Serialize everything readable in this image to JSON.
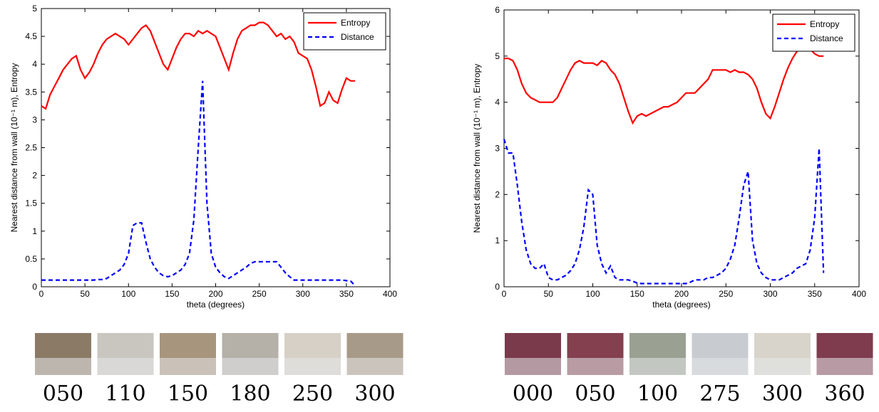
{
  "chart_data": [
    {
      "type": "line",
      "xlabel": "theta (degrees)",
      "ylabel": "Nearest distance from wall (10⁻¹ m), Entropy",
      "xlim": [
        0,
        400
      ],
      "xticks": [
        0,
        50,
        100,
        150,
        200,
        250,
        300,
        350,
        400
      ],
      "ylim": [
        0,
        5
      ],
      "yticks": [
        0,
        0.5,
        1,
        1.5,
        2,
        2.5,
        3,
        3.5,
        4,
        4.5,
        5
      ],
      "grid": false,
      "legend": "upper right",
      "x": [
        0,
        5,
        10,
        15,
        20,
        25,
        30,
        35,
        40,
        45,
        50,
        55,
        60,
        65,
        70,
        75,
        80,
        85,
        90,
        95,
        100,
        105,
        110,
        115,
        120,
        125,
        130,
        135,
        140,
        145,
        150,
        155,
        160,
        165,
        170,
        175,
        180,
        185,
        190,
        195,
        200,
        205,
        210,
        215,
        220,
        225,
        230,
        235,
        240,
        245,
        250,
        255,
        260,
        265,
        270,
        275,
        280,
        285,
        290,
        295,
        300,
        305,
        310,
        315,
        320,
        325,
        330,
        335,
        340,
        345,
        350,
        355,
        360
      ],
      "series": [
        {
          "name": "Entropy",
          "color": "#ff0000",
          "dash": "solid",
          "values": [
            3.25,
            3.2,
            3.45,
            3.6,
            3.75,
            3.9,
            4.0,
            4.1,
            4.15,
            3.9,
            3.75,
            3.85,
            4.0,
            4.2,
            4.35,
            4.45,
            4.5,
            4.55,
            4.5,
            4.45,
            4.35,
            4.45,
            4.55,
            4.65,
            4.7,
            4.6,
            4.4,
            4.2,
            4.0,
            3.9,
            4.1,
            4.3,
            4.45,
            4.55,
            4.55,
            4.5,
            4.6,
            4.55,
            4.6,
            4.55,
            4.5,
            4.3,
            4.1,
            3.9,
            4.2,
            4.45,
            4.6,
            4.65,
            4.7,
            4.7,
            4.75,
            4.75,
            4.7,
            4.6,
            4.5,
            4.55,
            4.45,
            4.5,
            4.4,
            4.2,
            4.15,
            4.1,
            3.9,
            3.6,
            3.25,
            3.3,
            3.5,
            3.35,
            3.3,
            3.55,
            3.75,
            3.7,
            3.7
          ]
        },
        {
          "name": "Distance",
          "color": "#0000ff",
          "dash": "dashed",
          "values": [
            0.12,
            0.12,
            0.12,
            0.12,
            0.12,
            0.12,
            0.12,
            0.12,
            0.12,
            0.12,
            0.12,
            0.12,
            0.12,
            0.13,
            0.13,
            0.15,
            0.2,
            0.25,
            0.3,
            0.4,
            0.6,
            1.1,
            1.15,
            1.15,
            0.8,
            0.5,
            0.35,
            0.25,
            0.2,
            0.18,
            0.2,
            0.25,
            0.3,
            0.4,
            0.6,
            1.2,
            2.5,
            3.7,
            1.5,
            0.6,
            0.35,
            0.25,
            0.18,
            0.15,
            0.2,
            0.25,
            0.3,
            0.35,
            0.42,
            0.45,
            0.45,
            0.45,
            0.45,
            0.45,
            0.45,
            0.35,
            0.25,
            0.18,
            0.12,
            0.12,
            0.12,
            0.12,
            0.12,
            0.12,
            0.12,
            0.12,
            0.12,
            0.12,
            0.12,
            0.12,
            0.11,
            0.1,
            0.02
          ]
        }
      ]
    },
    {
      "type": "line",
      "xlabel": "theta (degrees)",
      "ylabel": "Nearest distance from wall (10⁻¹ m), Entropy",
      "xlim": [
        0,
        400
      ],
      "xticks": [
        0,
        50,
        100,
        150,
        200,
        250,
        300,
        350,
        400
      ],
      "ylim": [
        0,
        6
      ],
      "yticks": [
        0,
        1,
        2,
        3,
        4,
        5,
        6
      ],
      "grid": false,
      "legend": "upper right",
      "x": [
        0,
        5,
        10,
        15,
        20,
        25,
        30,
        35,
        40,
        45,
        50,
        55,
        60,
        65,
        70,
        75,
        80,
        85,
        90,
        95,
        100,
        105,
        110,
        115,
        120,
        125,
        130,
        135,
        140,
        145,
        150,
        155,
        160,
        165,
        170,
        175,
        180,
        185,
        190,
        195,
        200,
        205,
        210,
        215,
        220,
        225,
        230,
        235,
        240,
        245,
        250,
        255,
        260,
        265,
        270,
        275,
        280,
        285,
        290,
        295,
        300,
        305,
        310,
        315,
        320,
        325,
        330,
        335,
        340,
        345,
        350,
        355,
        360
      ],
      "series": [
        {
          "name": "Entropy",
          "color": "#ff0000",
          "dash": "solid",
          "values": [
            4.95,
            4.95,
            4.9,
            4.7,
            4.4,
            4.2,
            4.1,
            4.05,
            4.0,
            4.0,
            4.0,
            4.0,
            4.1,
            4.3,
            4.5,
            4.7,
            4.85,
            4.9,
            4.85,
            4.85,
            4.85,
            4.8,
            4.9,
            4.85,
            4.7,
            4.6,
            4.4,
            4.1,
            3.8,
            3.55,
            3.7,
            3.75,
            3.7,
            3.75,
            3.8,
            3.85,
            3.9,
            3.9,
            3.95,
            4.0,
            4.1,
            4.2,
            4.2,
            4.2,
            4.3,
            4.4,
            4.5,
            4.7,
            4.7,
            4.7,
            4.7,
            4.65,
            4.7,
            4.65,
            4.65,
            4.6,
            4.5,
            4.3,
            4.0,
            3.75,
            3.65,
            3.9,
            4.2,
            4.5,
            4.75,
            4.95,
            5.1,
            5.2,
            5.2,
            5.15,
            5.05,
            5.0,
            5.0
          ]
        },
        {
          "name": "Distance",
          "color": "#0000ff",
          "dash": "dashed",
          "values": [
            3.2,
            2.9,
            2.9,
            2.2,
            1.4,
            0.8,
            0.5,
            0.4,
            0.4,
            0.5,
            0.2,
            0.15,
            0.15,
            0.2,
            0.25,
            0.35,
            0.5,
            0.8,
            1.3,
            2.1,
            2.0,
            0.9,
            0.5,
            0.3,
            0.45,
            0.2,
            0.15,
            0.15,
            0.15,
            0.12,
            0.08,
            0.07,
            0.07,
            0.07,
            0.07,
            0.07,
            0.07,
            0.07,
            0.07,
            0.07,
            0.07,
            0.07,
            0.1,
            0.15,
            0.15,
            0.15,
            0.2,
            0.2,
            0.25,
            0.3,
            0.4,
            0.6,
            0.9,
            1.5,
            2.2,
            2.5,
            1.0,
            0.5,
            0.3,
            0.2,
            0.15,
            0.15,
            0.15,
            0.2,
            0.25,
            0.3,
            0.4,
            0.45,
            0.5,
            0.8,
            1.5,
            3.0,
            0.3
          ]
        }
      ]
    }
  ],
  "image_strips": [
    {
      "labels": [
        "050",
        "110",
        "150",
        "180",
        "250",
        "300"
      ]
    },
    {
      "labels": [
        "000",
        "050",
        "100",
        "275",
        "300",
        "360"
      ]
    }
  ]
}
